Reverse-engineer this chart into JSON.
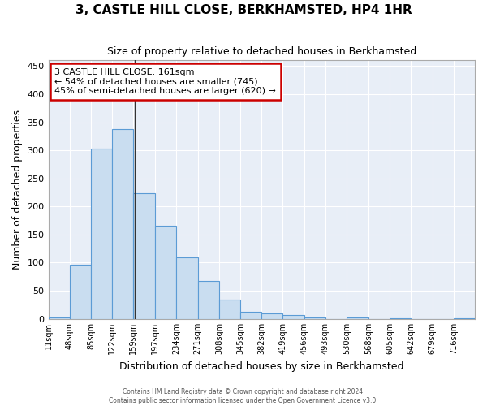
{
  "title": "3, CASTLE HILL CLOSE, BERKHAMSTED, HP4 1HR",
  "subtitle": "Size of property relative to detached houses in Berkhamsted",
  "xlabel": "Distribution of detached houses by size in Berkhamsted",
  "ylabel": "Number of detached properties",
  "footer_line1": "Contains HM Land Registry data © Crown copyright and database right 2024.",
  "footer_line2": "Contains public sector information licensed under the Open Government Licence v3.0.",
  "bin_edges": [
    11,
    48,
    85,
    122,
    159,
    197,
    234,
    271,
    308,
    345,
    382,
    419,
    456,
    493,
    530,
    568,
    605,
    642,
    679,
    716,
    753
  ],
  "bar_heights": [
    3,
    97,
    303,
    338,
    224,
    165,
    110,
    68,
    34,
    13,
    9,
    7,
    3,
    0,
    2,
    0,
    1,
    0,
    0,
    1
  ],
  "bar_fill_color": "#c9ddf0",
  "bar_edge_color": "#5b9bd5",
  "plot_bg_color": "#e8eef7",
  "fig_bg_color": "#ffffff",
  "grid_color": "#ffffff",
  "property_size": 161,
  "vline_color": "#333333",
  "annotation_line1": "3 CASTLE HILL CLOSE: 161sqm",
  "annotation_line2": "← 54% of detached houses are smaller (745)",
  "annotation_line3": "45% of semi-detached houses are larger (620) →",
  "annotation_box_facecolor": "#ffffff",
  "annotation_box_edgecolor": "#cc0000",
  "ylim_max": 460,
  "yticks": [
    0,
    50,
    100,
    150,
    200,
    250,
    300,
    350,
    400,
    450
  ],
  "tick_label_fontsize": 8,
  "ylabel_fontsize": 9,
  "xlabel_fontsize": 9,
  "title_fontsize": 11,
  "subtitle_fontsize": 9
}
